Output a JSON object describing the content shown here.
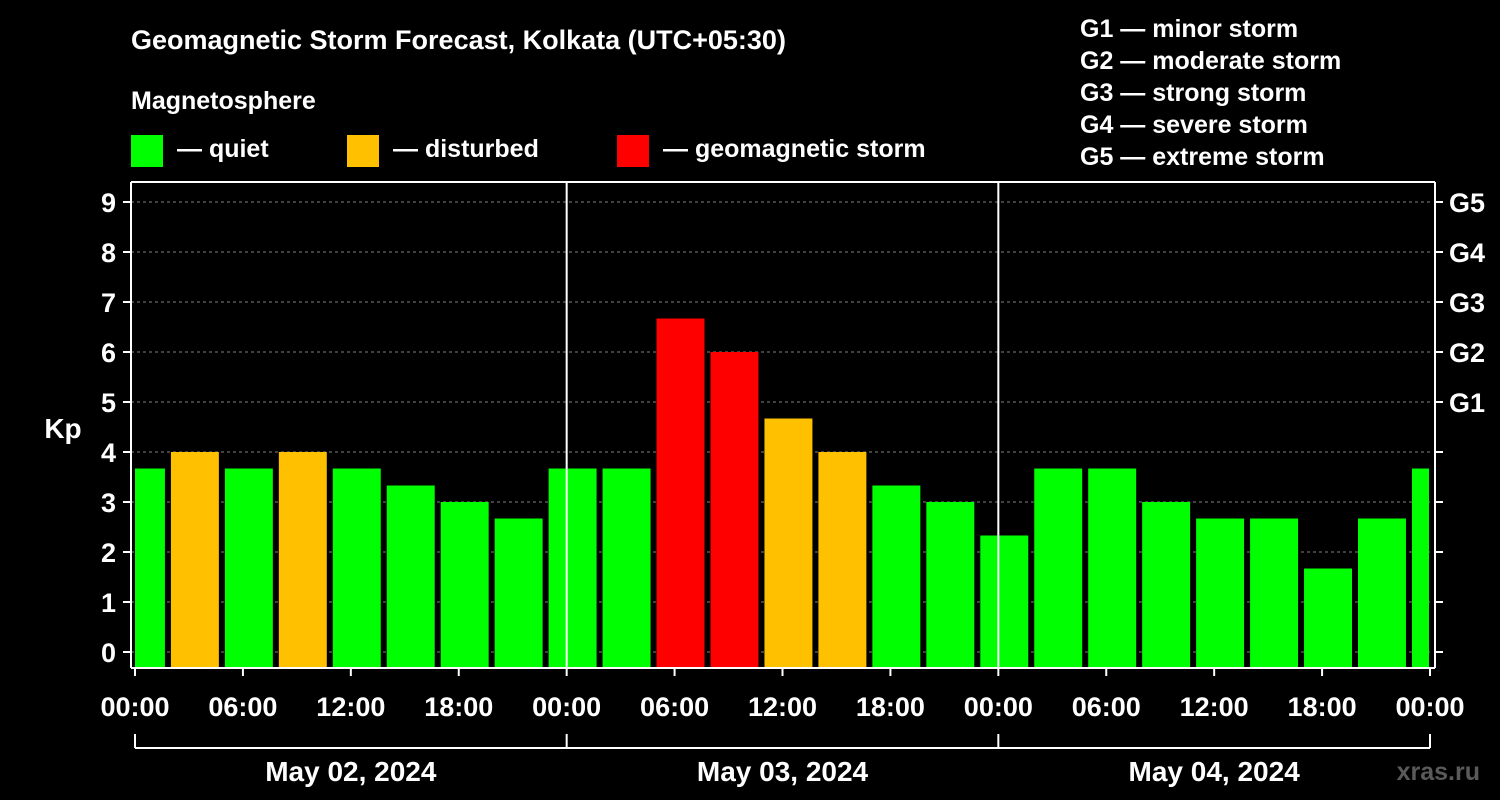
{
  "chart_data": {
    "type": "bar",
    "title": "Geomagnetic Storm Forecast, Kolkata (UTC+05:30)",
    "legend_title": "Magnetosphere",
    "legend": [
      {
        "label": "— quiet",
        "color": "#00ff00"
      },
      {
        "label": "— disturbed",
        "color": "#ffc000"
      },
      {
        "label": "— geomagnetic storm",
        "color": "#ff0000"
      }
    ],
    "g_scale_legend": [
      "G1 — minor storm",
      "G2 — moderate storm",
      "G3 — strong storm",
      "G4 — severe storm",
      "G5 — extreme storm"
    ],
    "ylabel": "Kp",
    "ylim": [
      0,
      9
    ],
    "y_ticks": [
      "0",
      "1",
      "2",
      "3",
      "4",
      "5",
      "6",
      "7",
      "8",
      "9"
    ],
    "g_ticks": [
      {
        "label": "G1",
        "kp": 5
      },
      {
        "label": "G2",
        "kp": 6
      },
      {
        "label": "G3",
        "kp": 7
      },
      {
        "label": "G4",
        "kp": 8
      },
      {
        "label": "G5",
        "kp": 9
      }
    ],
    "x_ticks": [
      {
        "label": "00:00",
        "hour": 0
      },
      {
        "label": "06:00",
        "hour": 6
      },
      {
        "label": "12:00",
        "hour": 12
      },
      {
        "label": "18:00",
        "hour": 18
      },
      {
        "label": "00:00",
        "hour": 24
      },
      {
        "label": "06:00",
        "hour": 30
      },
      {
        "label": "12:00",
        "hour": 36
      },
      {
        "label": "18:00",
        "hour": 42
      },
      {
        "label": "00:00",
        "hour": 48
      },
      {
        "label": "06:00",
        "hour": 54
      },
      {
        "label": "12:00",
        "hour": 60
      },
      {
        "label": "18:00",
        "hour": 66
      },
      {
        "label": "00:00",
        "hour": 72
      }
    ],
    "days": [
      "May 02, 2024",
      "May 03, 2024",
      "May 04, 2024"
    ],
    "grid": "horizontal dashed",
    "level_colors": {
      "quiet": "#00ff00",
      "disturbed": "#ffc000",
      "storm": "#ff0000"
    },
    "series": [
      {
        "interval_hours": 3,
        "bars": [
          {
            "start": 0,
            "end": 1.83,
            "kp": 3.67,
            "level": "quiet"
          },
          {
            "start": 1.83,
            "end": 4.83,
            "kp": 4.0,
            "level": "disturbed"
          },
          {
            "start": 4.83,
            "end": 7.83,
            "kp": 3.67,
            "level": "quiet"
          },
          {
            "start": 7.83,
            "end": 10.83,
            "kp": 4.0,
            "level": "disturbed"
          },
          {
            "start": 10.83,
            "end": 13.83,
            "kp": 3.67,
            "level": "quiet"
          },
          {
            "start": 13.83,
            "end": 16.83,
            "kp": 3.33,
            "level": "quiet"
          },
          {
            "start": 16.83,
            "end": 19.83,
            "kp": 3.0,
            "level": "quiet"
          },
          {
            "start": 19.83,
            "end": 22.83,
            "kp": 2.67,
            "level": "quiet"
          },
          {
            "start": 22.83,
            "end": 25.83,
            "kp": 3.67,
            "level": "quiet"
          },
          {
            "start": 25.83,
            "end": 28.83,
            "kp": 3.67,
            "level": "quiet"
          },
          {
            "start": 28.83,
            "end": 31.83,
            "kp": 6.67,
            "level": "storm"
          },
          {
            "start": 31.83,
            "end": 34.83,
            "kp": 6.0,
            "level": "storm"
          },
          {
            "start": 34.83,
            "end": 37.83,
            "kp": 4.67,
            "level": "disturbed"
          },
          {
            "start": 37.83,
            "end": 40.83,
            "kp": 4.0,
            "level": "disturbed"
          },
          {
            "start": 40.83,
            "end": 43.83,
            "kp": 3.33,
            "level": "quiet"
          },
          {
            "start": 43.83,
            "end": 46.83,
            "kp": 3.0,
            "level": "quiet"
          },
          {
            "start": 46.83,
            "end": 49.83,
            "kp": 2.33,
            "level": "quiet"
          },
          {
            "start": 49.83,
            "end": 52.83,
            "kp": 3.67,
            "level": "quiet"
          },
          {
            "start": 52.83,
            "end": 55.83,
            "kp": 3.67,
            "level": "quiet"
          },
          {
            "start": 55.83,
            "end": 58.83,
            "kp": 3.0,
            "level": "quiet"
          },
          {
            "start": 58.83,
            "end": 61.83,
            "kp": 2.67,
            "level": "quiet"
          },
          {
            "start": 61.83,
            "end": 64.83,
            "kp": 2.67,
            "level": "quiet"
          },
          {
            "start": 64.83,
            "end": 67.83,
            "kp": 1.67,
            "level": "quiet"
          },
          {
            "start": 67.83,
            "end": 70.83,
            "kp": 2.67,
            "level": "quiet"
          },
          {
            "start": 70.83,
            "end": 72,
            "kp": 3.67,
            "level": "quiet"
          }
        ]
      }
    ]
  },
  "watermark": "xras.ru"
}
